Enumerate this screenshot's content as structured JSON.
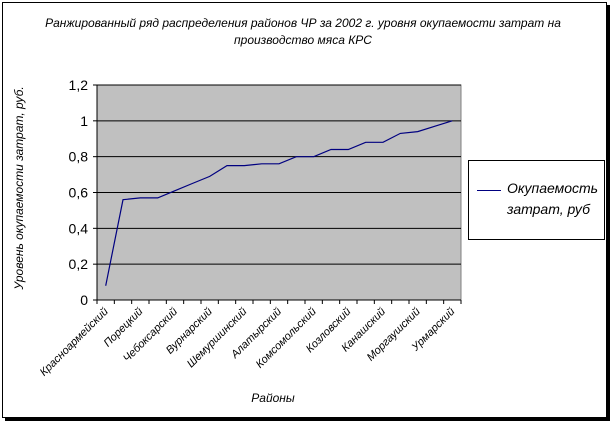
{
  "chart_data": {
    "type": "line",
    "title": "Ранжированный ряд распределения  районов ЧР за 2002 г. уровня окупаемости затрат на производство мяса КРС",
    "xlabel": "Районы",
    "ylabel": "Уровень окупаемости затрат, руб.",
    "ylim": [
      0,
      1.2
    ],
    "yticks": [
      "0",
      "0,2",
      "0,4",
      "0,6",
      "0,8",
      "1",
      "1,2"
    ],
    "ytick_values": [
      0,
      0.2,
      0.4,
      0.6,
      0.8,
      1.0,
      1.2
    ],
    "categories": [
      "Красноармейский",
      "",
      "Порецкий",
      "",
      "Чебоксарский",
      "",
      "Вурнарский",
      "",
      "Шемуршинский",
      "",
      "Алатырский",
      "",
      "Комсомольский",
      "",
      "Козловский",
      "",
      "Канашский",
      "",
      "Моргаушский",
      "",
      "Урмарский"
    ],
    "series": [
      {
        "name": "Окупаемость затрат, руб",
        "color": "#000080",
        "values": [
          0.08,
          0.56,
          0.57,
          0.57,
          0.61,
          0.65,
          0.69,
          0.75,
          0.75,
          0.76,
          0.76,
          0.8,
          0.8,
          0.84,
          0.84,
          0.88,
          0.88,
          0.93,
          0.94,
          0.97,
          1.0
        ]
      }
    ],
    "grid": true,
    "plot_background": "#c0c0c0",
    "legend": "right"
  }
}
